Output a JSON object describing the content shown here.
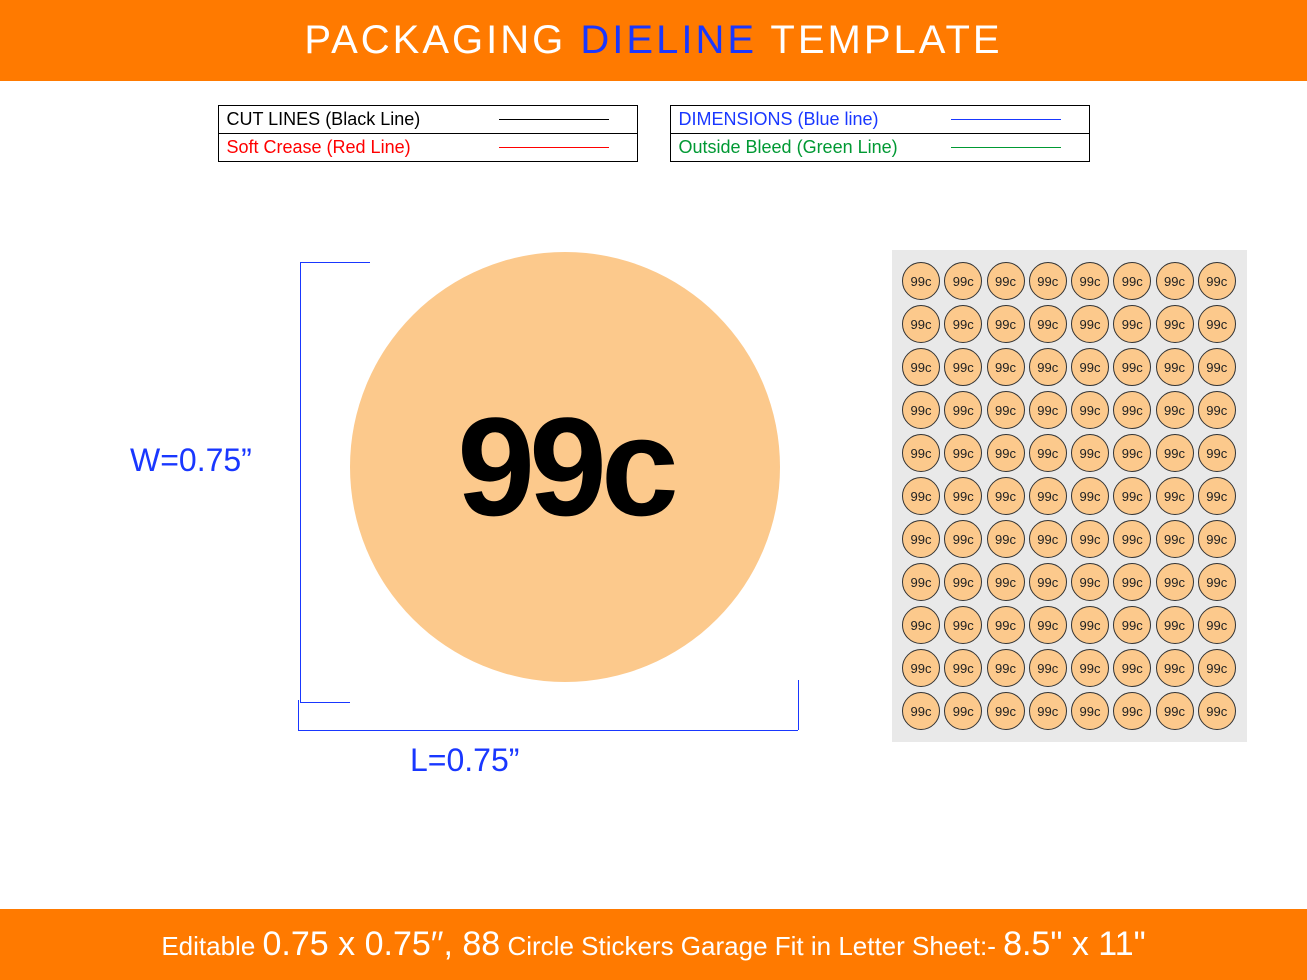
{
  "header": {
    "word1": "PACKAGING",
    "word2": "DIELINE",
    "word3": "TEMPLATE",
    "bg_color": "#ff7a00",
    "text_color": "#ffffff",
    "accent_color": "#1937ff"
  },
  "legend": [
    {
      "label": "CUT LINES (Black Line)",
      "color": "#000000",
      "text_color": "#000000"
    },
    {
      "label": "Soft Crease (Red Line)",
      "color": "#ff0000",
      "text_color": "#ff0000"
    },
    {
      "label": "DIMENSIONS (Blue line)",
      "color": "#1937ff",
      "text_color": "#1937ff"
    },
    {
      "label": "Outside Bleed (Green Line)",
      "color": "#009933",
      "text_color": "#009933"
    }
  ],
  "big_sticker": {
    "text": "99c",
    "bg_color": "#fcc98c",
    "text_color": "#000000",
    "font_size": 140
  },
  "dimensions": {
    "w_label": "W=0.75”",
    "l_label": "L=0.75”",
    "line_color": "#1937ff",
    "font_size": 32
  },
  "sheet": {
    "rows": 11,
    "cols": 8,
    "sticker_text": "99c",
    "sticker_bg": "#fcc98c",
    "sticker_border": "#333333",
    "sheet_bg": "#e9e9e9"
  },
  "footer": {
    "text_prefix": "Editable ",
    "size": "0.75 x 0.75′′, 88",
    "text_mid": " Circle Stickers Garage Fit in Letter Sheet:- ",
    "sheet_size": "8.5\" x 11\"",
    "bg_color": "#ff7a00",
    "text_color": "#ffffff"
  }
}
